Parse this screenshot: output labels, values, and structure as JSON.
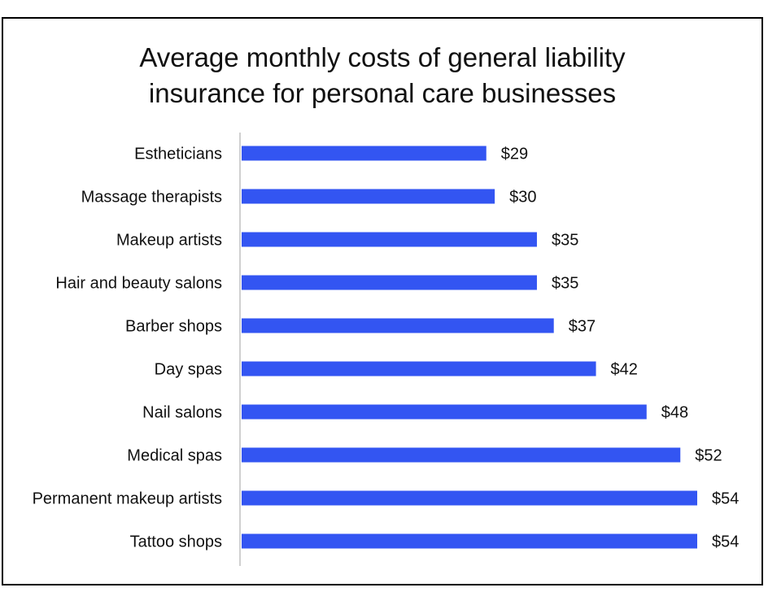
{
  "chart_data": {
    "type": "bar",
    "orientation": "horizontal",
    "title": "Average monthly costs of general liability insurance for personal care businesses",
    "categories": [
      "Estheticians",
      "Massage therapists",
      "Makeup artists",
      "Hair and beauty salons",
      "Barber shops",
      "Day spas",
      "Nail salons",
      "Medical spas",
      "Permanent makeup artists",
      "Tattoo shops"
    ],
    "values": [
      29,
      30,
      35,
      35,
      37,
      42,
      48,
      52,
      54,
      54
    ],
    "value_labels": [
      "$29",
      "$30",
      "$35",
      "$35",
      "$37",
      "$42",
      "$48",
      "$52",
      "$54",
      "$54"
    ],
    "xlabel": "",
    "ylabel": "",
    "xlim": [
      0,
      54
    ],
    "grid": false,
    "bar_color": "#3355F2",
    "axis_color": "#D0D0D0"
  }
}
